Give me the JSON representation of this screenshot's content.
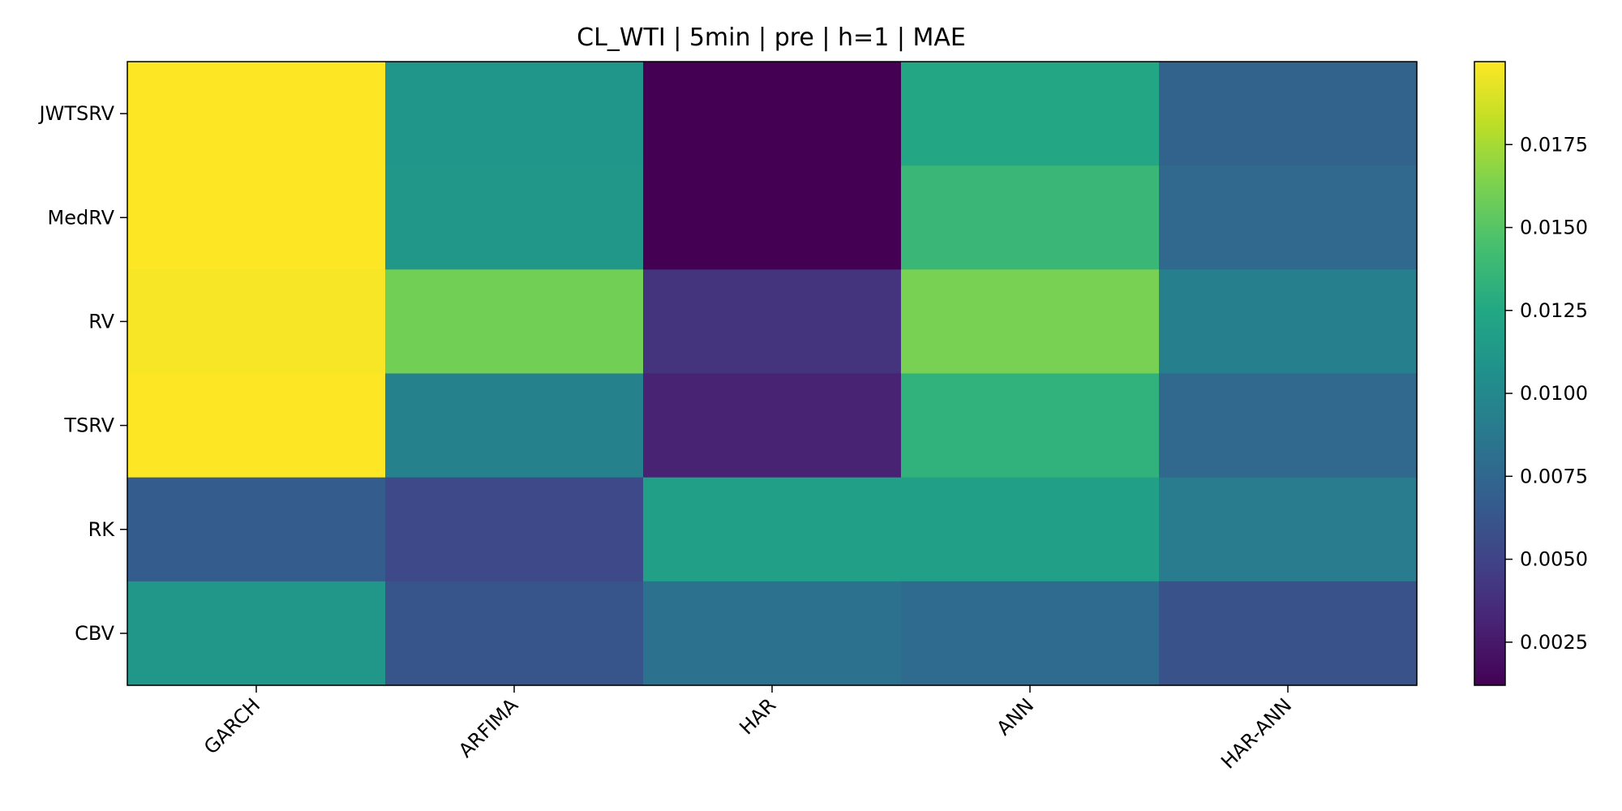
{
  "chart_data": {
    "type": "heatmap",
    "title": "CL_WTI | 5min | pre | h=1 | MAE",
    "xlabel": "",
    "ylabel": "",
    "x_categories": [
      "GARCH",
      "ARFIMA",
      "HAR",
      "ANN",
      "HAR-ANN"
    ],
    "y_categories": [
      "JWTSRV",
      "MedRV",
      "RV",
      "TSRV",
      "RK",
      "CBV"
    ],
    "values": [
      [
        0.02,
        0.011,
        0.0012,
        0.0124,
        0.0072
      ],
      [
        0.02,
        0.0112,
        0.0012,
        0.0138,
        0.0076
      ],
      [
        0.0198,
        0.016,
        0.004,
        0.0162,
        0.0093
      ],
      [
        0.02,
        0.0095,
        0.003,
        0.0133,
        0.0076
      ],
      [
        0.0068,
        0.0054,
        0.0118,
        0.0118,
        0.009
      ],
      [
        0.0112,
        0.0062,
        0.0082,
        0.0078,
        0.006
      ]
    ],
    "colorscale": "viridis",
    "vmin": 0.0012,
    "vmax": 0.02,
    "colorbar_ticks": [
      "0.0025",
      "0.0050",
      "0.0075",
      "0.0100",
      "0.0125",
      "0.0150",
      "0.0175"
    ],
    "grid": false
  }
}
